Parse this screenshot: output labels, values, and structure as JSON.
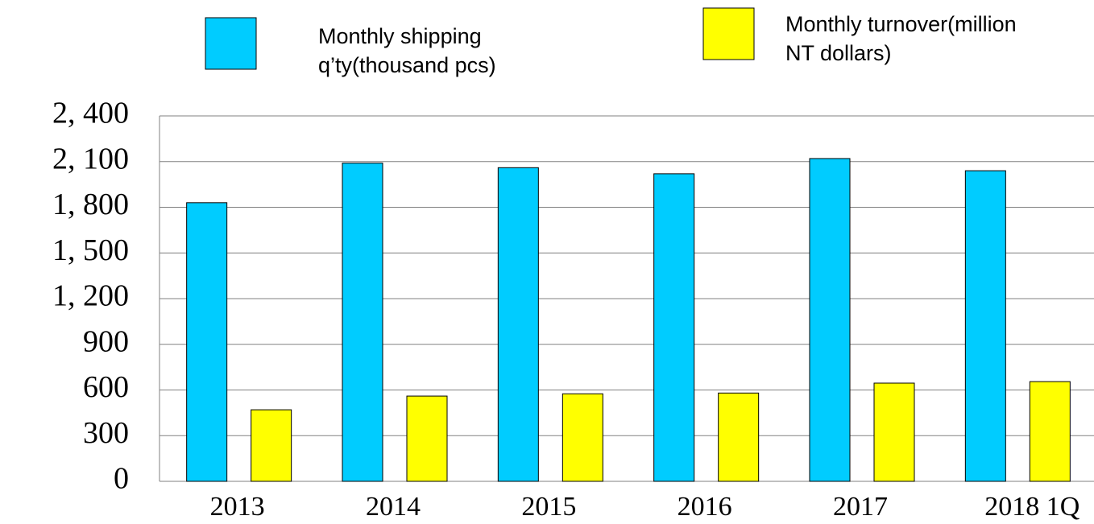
{
  "chart_data": {
    "type": "bar",
    "categories": [
      "2013",
      "2014",
      "2015",
      "2016",
      "2017",
      "2018 1Q"
    ],
    "series": [
      {
        "name": "Monthly shipping q’ty(thousand pcs)",
        "color": "#00ccff",
        "values": [
          1830,
          2090,
          2060,
          2020,
          2120,
          2040
        ]
      },
      {
        "name": "Monthly turnover(million NT dollars)",
        "color": "#ffff00",
        "values": [
          470,
          560,
          575,
          580,
          645,
          655
        ]
      }
    ],
    "ylim": [
      0,
      2400
    ],
    "yticks": [
      0,
      300,
      600,
      900,
      {
        "value": 1200,
        "label": "1, 200"
      },
      {
        "value": 1500,
        "label": "1, 500"
      },
      {
        "value": 1800,
        "label": "1, 800"
      },
      {
        "value": 2100,
        "label": "2, 100"
      },
      {
        "value": 2400,
        "label": "2, 400"
      }
    ],
    "grid": true
  }
}
